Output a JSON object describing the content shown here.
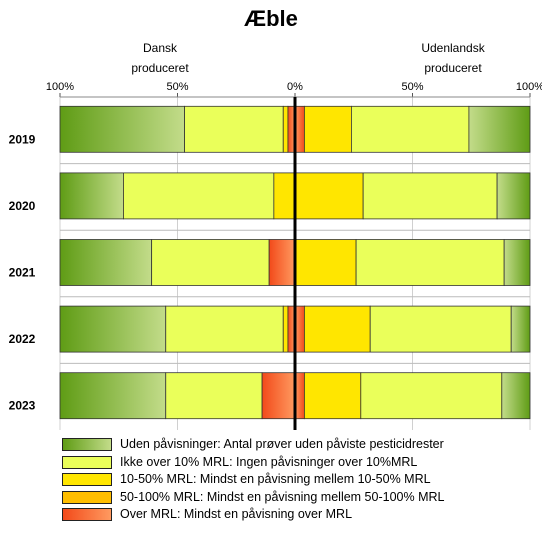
{
  "title": "Æble",
  "left_label_line1": "Dansk",
  "left_label_line2": "produceret",
  "right_label_line1": "Udenlandsk",
  "right_label_line2": "produceret",
  "chart_data": {
    "type": "bar",
    "orientation": "horizontal-diverging",
    "title": "Æble",
    "x_ticks": [
      "100%",
      "50%",
      "0%",
      "50%",
      "100%"
    ],
    "categories": [
      "2019",
      "2020",
      "2021",
      "2022",
      "2023"
    ],
    "left_group": "Dansk produceret",
    "right_group": "Udenlandsk produceret",
    "series_order": [
      "none",
      "under10",
      "r10_50",
      "r50_100",
      "over"
    ],
    "series_colors": {
      "none": [
        "#5f9c15",
        "#c3dc8a"
      ],
      "under10": [
        "#e6ff3c",
        "#e6ff3c"
      ],
      "r10_50": [
        "#ffe600",
        "#ffe600"
      ],
      "r50_100": [
        "#ffbe00",
        "#ffbe00"
      ],
      "over": [
        "#ff8a50",
        "#f24a1a"
      ]
    },
    "dansk": [
      {
        "none": 53,
        "under10": 42,
        "r10_50": 2,
        "r50_100": 0,
        "over": 3
      },
      {
        "none": 27,
        "under10": 64,
        "r10_50": 9,
        "r50_100": 0,
        "over": 0
      },
      {
        "none": 39,
        "under10": 50,
        "r10_50": 0,
        "r50_100": 0,
        "over": 11
      },
      {
        "none": 45,
        "under10": 50,
        "r10_50": 2,
        "r50_100": 0,
        "over": 3
      },
      {
        "none": 45,
        "under10": 41,
        "r10_50": 0,
        "r50_100": 0,
        "over": 14
      }
    ],
    "udenlandsk": [
      {
        "over": 4,
        "r50_100": 0,
        "r10_50": 20,
        "under10": 50,
        "none": 26
      },
      {
        "over": 0,
        "r50_100": 0,
        "r10_50": 29,
        "under10": 57,
        "none": 14
      },
      {
        "over": 0,
        "r50_100": 0,
        "r10_50": 26,
        "under10": 63,
        "none": 11
      },
      {
        "over": 4,
        "r50_100": 0,
        "r10_50": 28,
        "under10": 60,
        "none": 8
      },
      {
        "over": 4,
        "r50_100": 0,
        "r10_50": 24,
        "under10": 60,
        "none": 12
      }
    ]
  },
  "legend": [
    {
      "key": "none",
      "text": "Uden påvisninger: Antal prøver uden påviste pesticidrester"
    },
    {
      "key": "under10",
      "text": "Ikke over 10% MRL: Ingen påvisninger over 10%MRL"
    },
    {
      "key": "r10_50",
      "text": "10-50% MRL: Mindst en påvisning mellem 10-50% MRL"
    },
    {
      "key": "r50_100",
      "text": "50-100% MRL: Mindst en påvisning mellem 50-100% MRL"
    },
    {
      "key": "over",
      "text": "Over MRL:  Mindst en påvisning over MRL"
    }
  ]
}
